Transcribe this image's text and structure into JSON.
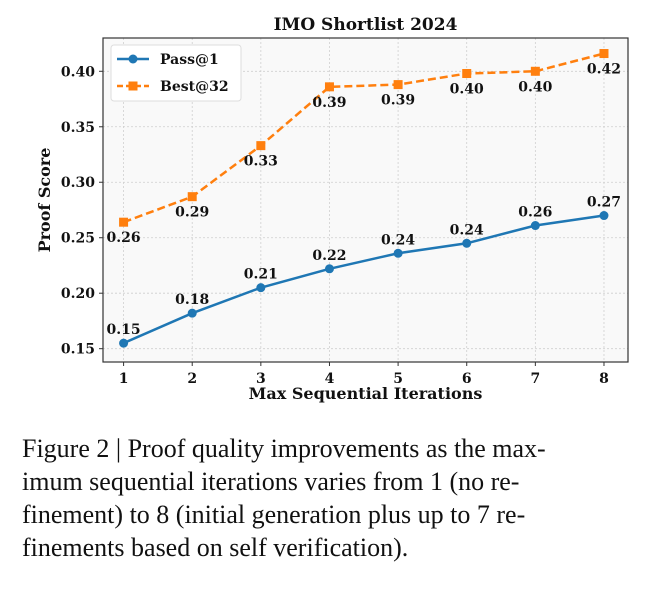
{
  "chart_data": {
    "type": "line",
    "title": "IMO Shortlist 2024",
    "xlabel": "Max Sequential Iterations",
    "ylabel": "Proof Score",
    "x": [
      1,
      2,
      3,
      4,
      5,
      6,
      7,
      8
    ],
    "xticks": [
      "1",
      "2",
      "3",
      "4",
      "5",
      "6",
      "7",
      "8"
    ],
    "yticks": [
      "0.15",
      "0.20",
      "0.25",
      "0.30",
      "0.35",
      "0.40"
    ],
    "ytick_values": [
      0.15,
      0.2,
      0.25,
      0.3,
      0.35,
      0.4
    ],
    "xlim": [
      0.7,
      8.35
    ],
    "ylim": [
      0.138,
      0.43
    ],
    "grid": true,
    "legend_position": "top-left",
    "series": [
      {
        "name": "Pass@1",
        "color": "#1f77b4",
        "style": "solid",
        "marker": "circle",
        "values": [
          0.155,
          0.182,
          0.205,
          0.222,
          0.236,
          0.245,
          0.261,
          0.27
        ],
        "labels": [
          "0.15",
          "0.18",
          "0.21",
          "0.22",
          "0.24",
          "0.24",
          "0.26",
          "0.27"
        ],
        "label_position": "above"
      },
      {
        "name": "Best@32",
        "color": "#ff7f0e",
        "style": "dashed",
        "marker": "square",
        "values": [
          0.264,
          0.287,
          0.333,
          0.386,
          0.388,
          0.398,
          0.4,
          0.416
        ],
        "labels": [
          "0.26",
          "0.29",
          "0.33",
          "0.39",
          "0.39",
          "0.40",
          "0.40",
          "0.42"
        ],
        "label_position": "below"
      }
    ]
  },
  "caption": {
    "lines": [
      "Figure 2 | Proof quality improvements as the max-",
      "imum sequential iterations varies from 1 (no re-",
      "finement) to 8 (initial generation plus up to 7 re-",
      "finements based on self verification)."
    ]
  }
}
